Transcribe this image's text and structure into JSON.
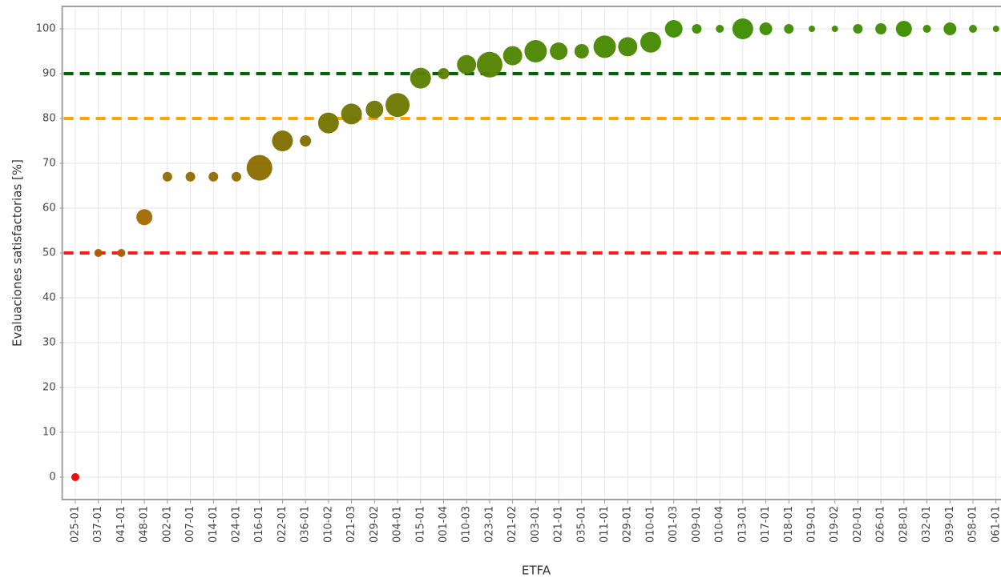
{
  "chart_data": {
    "type": "bubble",
    "x_label": "ETFA",
    "y_label": "Evaluaciones satisfactorias [%]",
    "categories": [
      "025-01",
      "037-01",
      "041-01",
      "048-01",
      "002-01",
      "007-01",
      "014-01",
      "024-01",
      "016-01",
      "022-01",
      "036-01",
      "010-02",
      "021-03",
      "029-02",
      "004-01",
      "015-01",
      "001-04",
      "010-03",
      "023-01",
      "021-02",
      "003-01",
      "021-01",
      "035-01",
      "011-01",
      "029-01",
      "010-01",
      "001-03",
      "009-01",
      "010-04",
      "013-01",
      "017-01",
      "018-01",
      "019-01",
      "019-02",
      "020-01",
      "026-01",
      "028-01",
      "032-01",
      "039-01",
      "058-01",
      "061-01"
    ],
    "values": [
      0,
      50,
      50,
      58,
      67,
      67,
      67,
      67,
      69,
      75,
      75,
      79,
      81,
      82,
      83,
      89,
      90,
      92,
      92,
      94,
      95,
      95,
      95,
      96,
      96,
      97,
      100,
      100,
      100,
      100,
      100,
      100,
      100,
      100,
      100,
      100,
      100,
      100,
      100,
      100,
      100
    ],
    "sizes": [
      5,
      5,
      5,
      10,
      6,
      6,
      6,
      6,
      16,
      13,
      7,
      13,
      13,
      11,
      15,
      13,
      7,
      12,
      16,
      12,
      14,
      11,
      9,
      14,
      12,
      13,
      11,
      6,
      5,
      13,
      8,
      6,
      4,
      4,
      6,
      7,
      10,
      5,
      8,
      5,
      4
    ],
    "colorscale": [
      [
        0,
        "#f00000"
      ],
      [
        58,
        "#a06800"
      ],
      [
        75,
        "#7f6e00"
      ],
      [
        100,
        "#3d8c00"
      ]
    ],
    "ylim": [
      -5,
      105
    ],
    "yticks": [
      0,
      10,
      20,
      30,
      40,
      50,
      60,
      70,
      80,
      90,
      100
    ],
    "grid": true,
    "hlines": [
      {
        "value": 50,
        "color": "#ff1a1a"
      },
      {
        "value": 80,
        "color": "#ffa500"
      },
      {
        "value": 90,
        "color": "#006400"
      }
    ]
  }
}
